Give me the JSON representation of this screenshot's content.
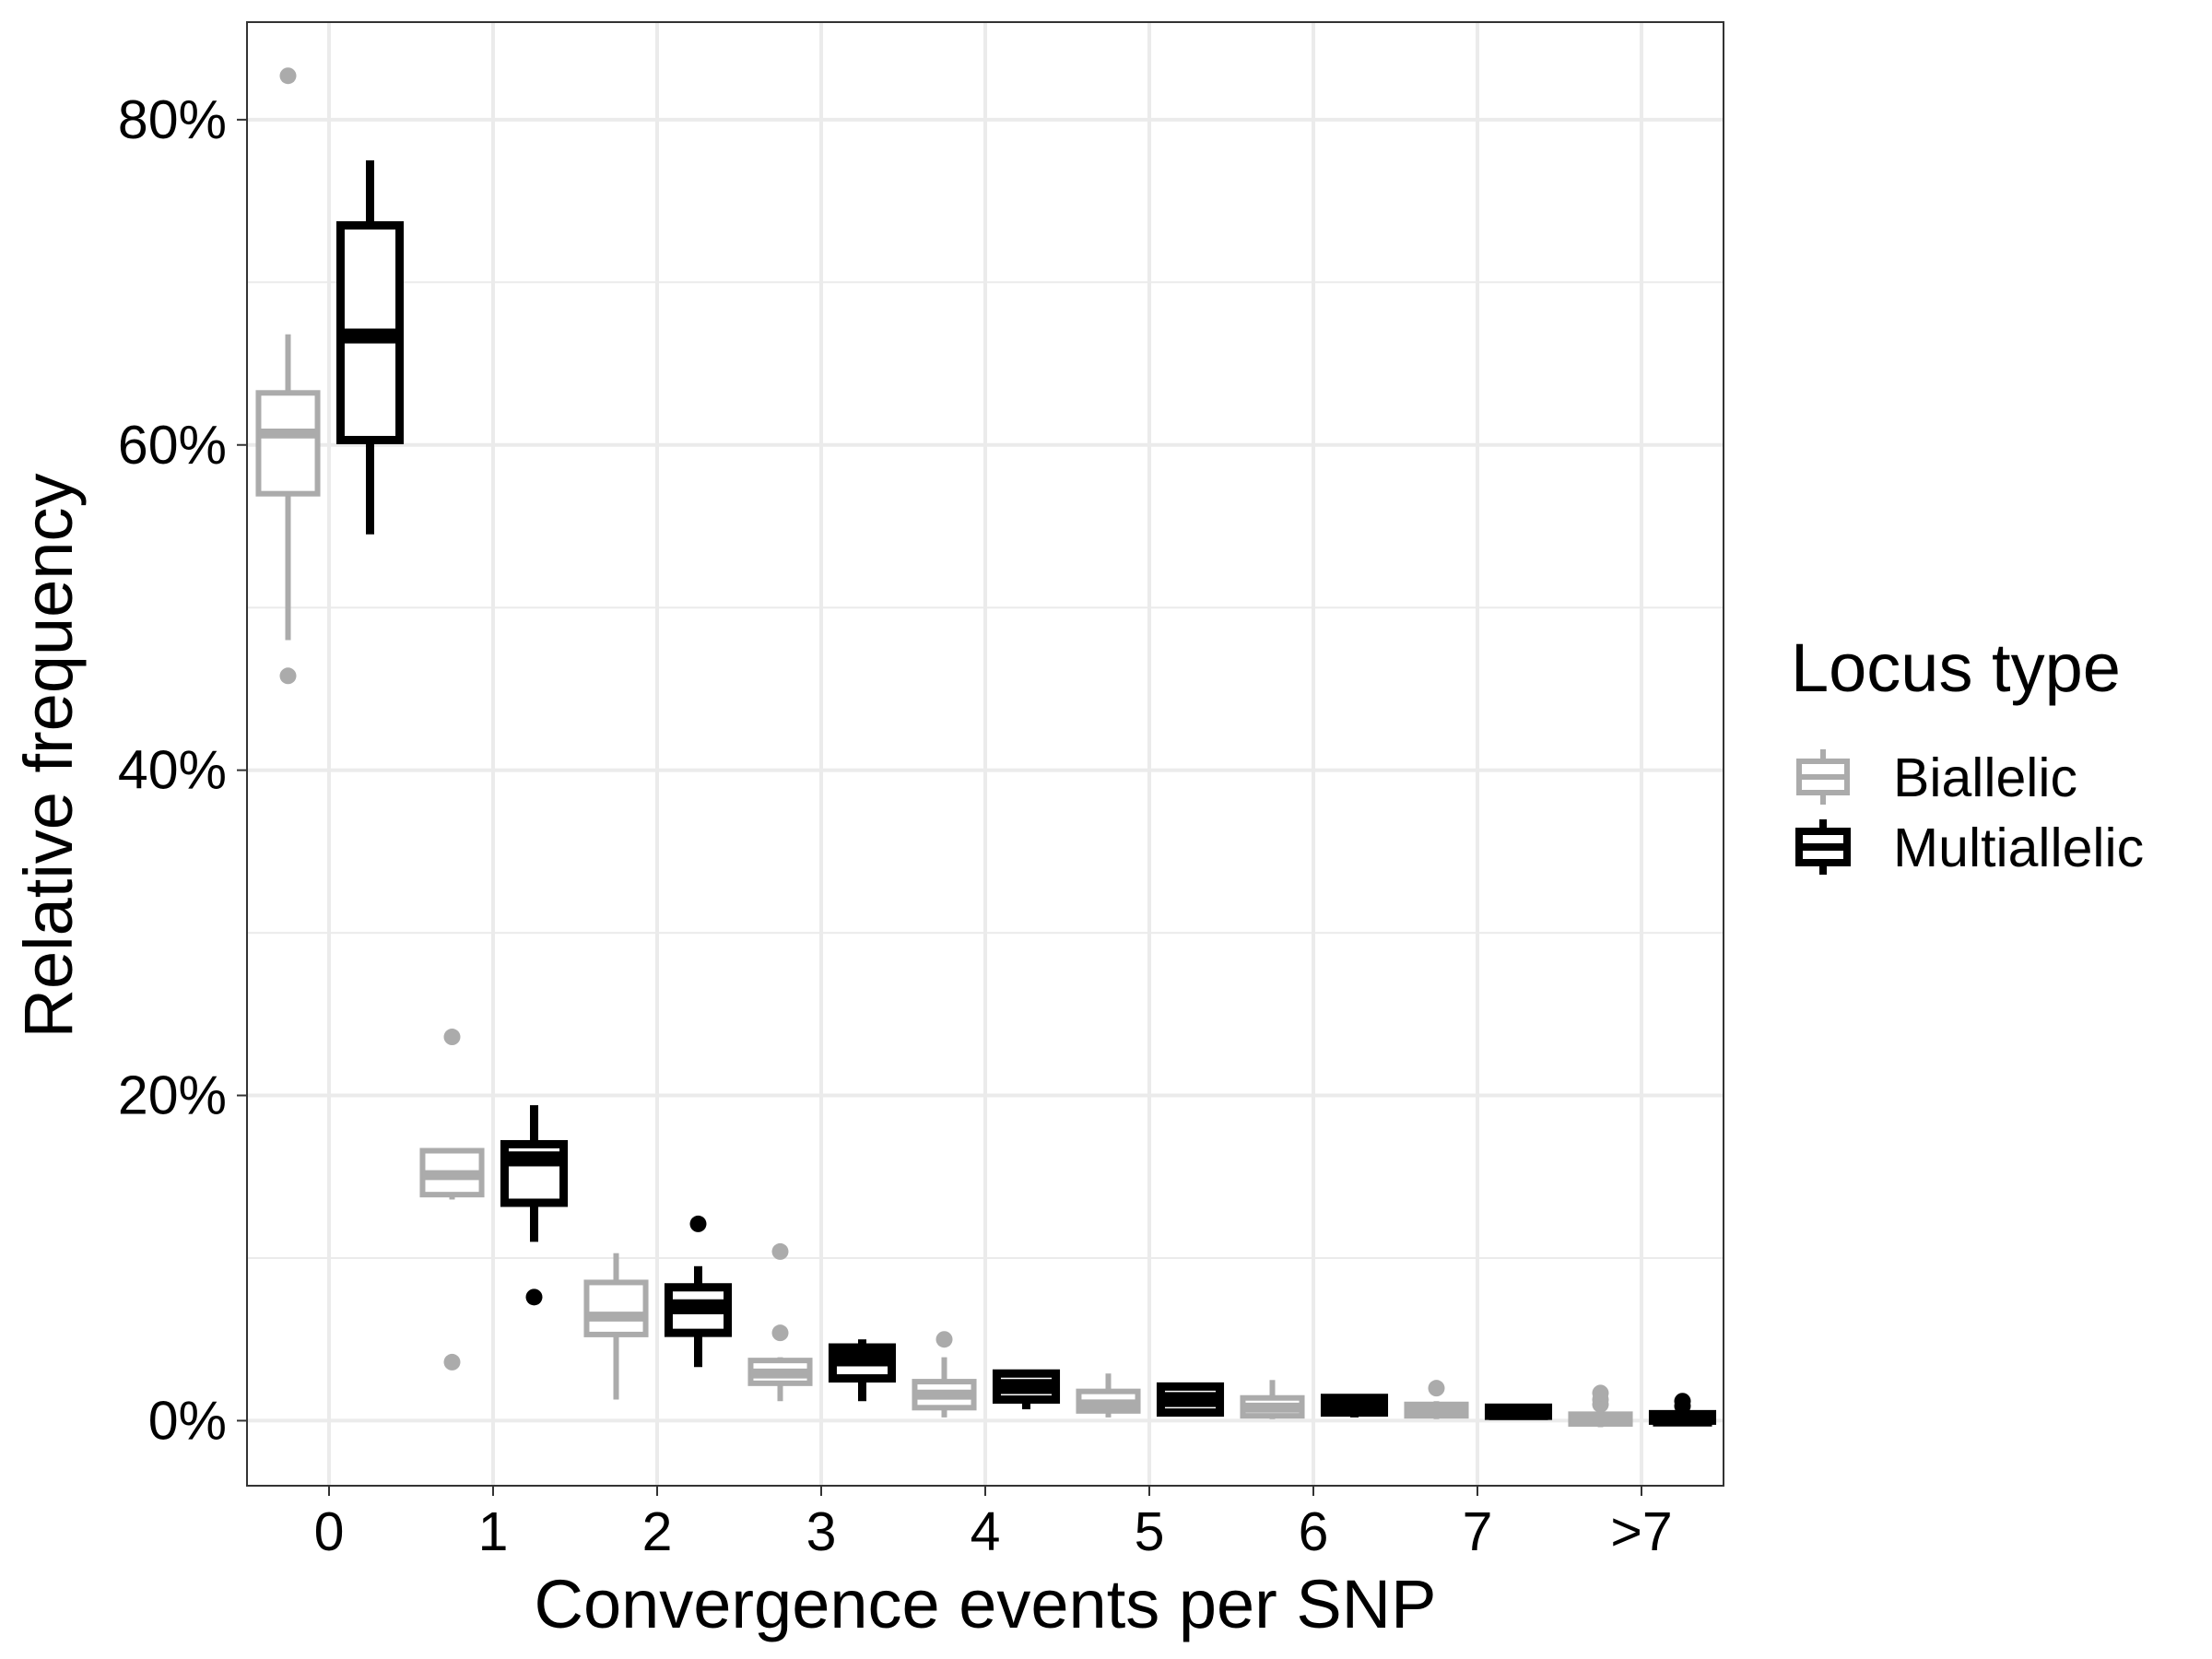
{
  "chart_data": {
    "type": "boxplot",
    "xlabel": "Convergence events per SNP",
    "ylabel": "Relative frequency",
    "categories": [
      "0",
      "1",
      "2",
      "3",
      "4",
      "5",
      "6",
      "7",
      ">7"
    ],
    "ylim": [
      -4,
      86
    ],
    "y_ticks": [
      0,
      20,
      40,
      60,
      80
    ],
    "y_tick_labels": [
      "0%",
      "20%",
      "40%",
      "60%",
      "80%"
    ],
    "y_unit": "%",
    "grid": true,
    "legend": {
      "title": "Locus type",
      "position": "right"
    },
    "series": [
      {
        "name": "Biallelic",
        "color": "#ababab",
        "boxes": [
          {
            "category": "0",
            "whisker_low": 48.0,
            "q1": 57.0,
            "median": 60.7,
            "q3": 63.2,
            "whisker_high": 66.8,
            "outliers": [
              82.7,
              45.8
            ]
          },
          {
            "category": "1",
            "whisker_low": 13.6,
            "q1": 13.9,
            "median": 15.1,
            "q3": 16.6,
            "whisker_high": 16.6,
            "outliers": [
              23.6,
              3.6
            ]
          },
          {
            "category": "2",
            "whisker_low": 1.3,
            "q1": 5.3,
            "median": 6.4,
            "q3": 8.5,
            "whisker_high": 10.3,
            "outliers": []
          },
          {
            "category": "3",
            "whisker_low": 1.2,
            "q1": 2.3,
            "median": 2.9,
            "q3": 3.7,
            "whisker_high": 3.9,
            "outliers": [
              10.4,
              5.4
            ]
          },
          {
            "category": "4",
            "whisker_low": 0.2,
            "q1": 0.8,
            "median": 1.6,
            "q3": 2.4,
            "whisker_high": 3.9,
            "outliers": [
              5.0
            ]
          },
          {
            "category": "5",
            "whisker_low": 0.2,
            "q1": 0.6,
            "median": 1.0,
            "q3": 1.8,
            "whisker_high": 2.9,
            "outliers": []
          },
          {
            "category": "6",
            "whisker_low": 0.1,
            "q1": 0.3,
            "median": 0.8,
            "q3": 1.4,
            "whisker_high": 2.5,
            "outliers": []
          },
          {
            "category": "7",
            "whisker_low": 0.1,
            "q1": 0.3,
            "median": 0.6,
            "q3": 1.0,
            "whisker_high": 1.2,
            "outliers": [
              2.0
            ]
          },
          {
            "category": ">7",
            "whisker_low": -0.4,
            "q1": -0.2,
            "median": 0.1,
            "q3": 0.4,
            "whisker_high": 0.6,
            "outliers": [
              1.0,
              1.3,
              1.7
            ]
          }
        ]
      },
      {
        "name": "Multiallelic",
        "color": "#000000",
        "boxes": [
          {
            "category": "0",
            "whisker_low": 54.5,
            "q1": 60.3,
            "median": 66.7,
            "q3": 73.5,
            "whisker_high": 77.5,
            "outliers": []
          },
          {
            "category": "1",
            "whisker_low": 11.0,
            "q1": 13.4,
            "median": 16.1,
            "q3": 17.0,
            "whisker_high": 19.4,
            "outliers": [
              7.6
            ]
          },
          {
            "category": "2",
            "whisker_low": 3.3,
            "q1": 5.4,
            "median": 7.0,
            "q3": 8.2,
            "whisker_high": 9.5,
            "outliers": [
              12.1
            ]
          },
          {
            "category": "3",
            "whisker_low": 1.2,
            "q1": 2.6,
            "median": 3.8,
            "q3": 4.5,
            "whisker_high": 5.0,
            "outliers": []
          },
          {
            "category": "4",
            "whisker_low": 0.7,
            "q1": 1.3,
            "median": 2.1,
            "q3": 2.9,
            "whisker_high": 2.9,
            "outliers": []
          },
          {
            "category": "5",
            "whisker_low": 0.3,
            "q1": 0.5,
            "median": 1.3,
            "q3": 2.1,
            "whisker_high": 2.1,
            "outliers": []
          },
          {
            "category": "6",
            "whisker_low": 0.2,
            "q1": 0.5,
            "median": 1.0,
            "q3": 1.4,
            "whisker_high": 1.4,
            "outliers": []
          },
          {
            "category": "7",
            "whisker_low": 0.2,
            "q1": 0.3,
            "median": 0.5,
            "q3": 0.8,
            "whisker_high": 0.9,
            "outliers": []
          },
          {
            "category": ">7",
            "whisker_low": -0.1,
            "q1": 0.0,
            "median": 0.1,
            "q3": 0.4,
            "whisker_high": 0.6,
            "outliers": [
              0.9,
              1.2
            ]
          }
        ]
      }
    ]
  }
}
